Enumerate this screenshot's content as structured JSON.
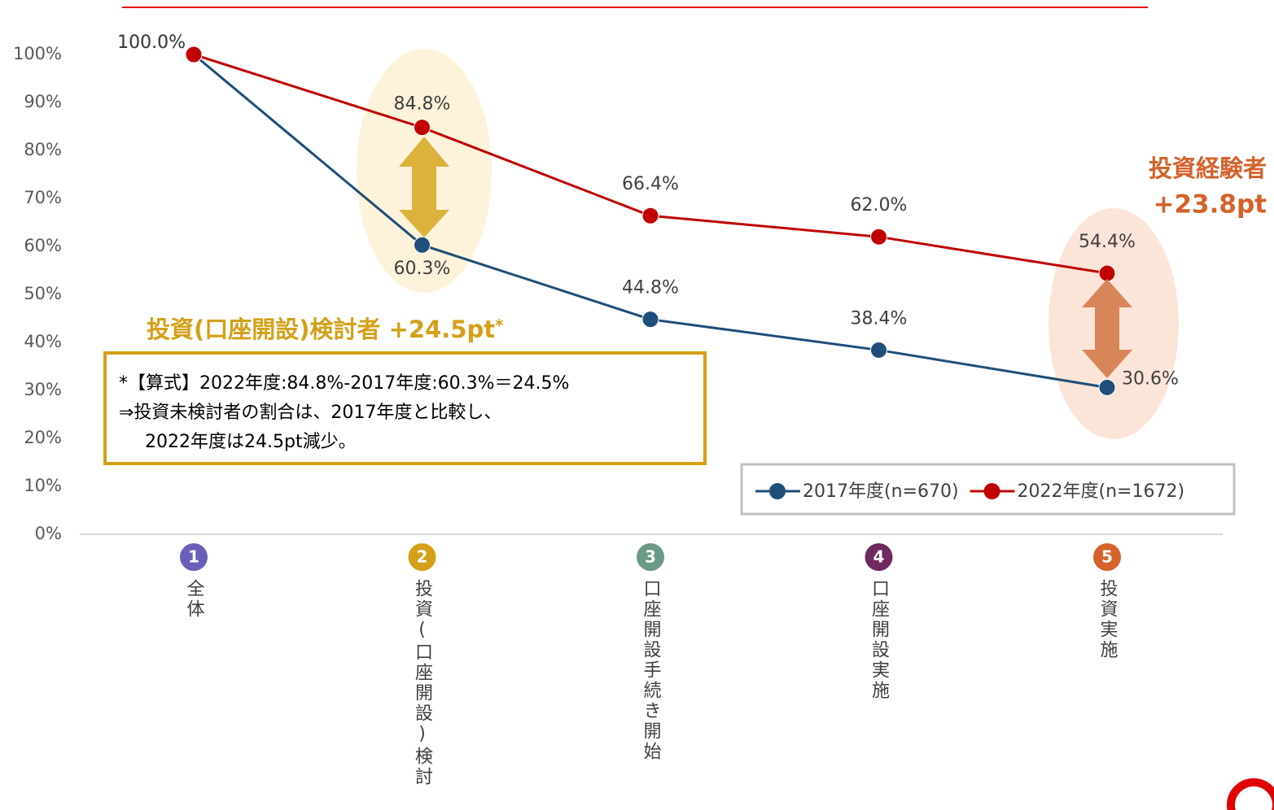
{
  "chart_data": {
    "type": "line",
    "categories": [
      "全体",
      "投資(口座開設)検討",
      "口座開設手続き開始",
      "口座開設実施",
      "投資実施"
    ],
    "category_badges": [
      {
        "label": "1",
        "color": "#6a5fb8"
      },
      {
        "label": "2",
        "color": "#d4a017"
      },
      {
        "label": "3",
        "color": "#6b9a86"
      },
      {
        "label": "4",
        "color": "#6e2a5c"
      },
      {
        "label": "5",
        "color": "#d4622a"
      }
    ],
    "series": [
      {
        "name": "2017年度(n=670)",
        "color": "#1f4e79",
        "values": [
          100,
          60.3,
          44.8,
          38.4,
          30.6
        ],
        "value_labels": [
          "100.0%",
          "60.3%",
          "44.8%",
          "38.4%",
          "30.6%"
        ]
      },
      {
        "name": "2022年度(n=1672)",
        "color": "#c00000",
        "values": [
          100,
          84.8,
          66.4,
          62.0,
          54.4
        ],
        "value_labels": [
          "100.0%",
          "84.8%",
          "66.4%",
          "62.0%",
          "54.4%"
        ]
      }
    ],
    "ylim": [
      0,
      100
    ],
    "yticks": [
      {
        "value": 0,
        "label": "0%"
      },
      {
        "value": 10,
        "label": "10%"
      },
      {
        "value": 20,
        "label": "20%"
      },
      {
        "value": 30,
        "label": "30%"
      },
      {
        "value": 40,
        "label": "40%"
      },
      {
        "value": 50,
        "label": "50%"
      },
      {
        "value": 60,
        "label": "60%"
      },
      {
        "value": 70,
        "label": "70%"
      },
      {
        "value": 80,
        "label": "80%"
      },
      {
        "value": 90,
        "label": "90%"
      },
      {
        "value": 100,
        "label": "100%"
      }
    ],
    "legend": "bottom-right",
    "annotations": {
      "consider": {
        "text": "投資(口座開設)検討者  +24.5pt",
        "mark": "*",
        "color": "#d4a017"
      },
      "formula": [
        "*【算式】2022年度:84.8%-2017年度:60.3%＝24.5%",
        "⇒投資未検討者の割合は、2017年度と比較し、",
        "2022年度は24.5pt減少。"
      ],
      "experience": {
        "lines": [
          "投資経験者",
          "+23.8pt"
        ],
        "color": "#d4622a"
      }
    }
  }
}
